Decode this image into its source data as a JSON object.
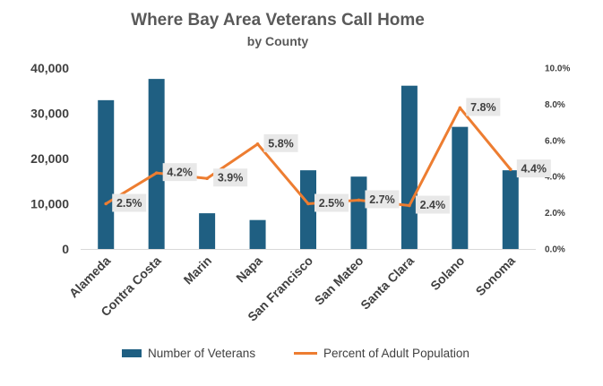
{
  "chart_data": {
    "type": "bar+line",
    "title": "Where Bay Area Veterans Call Home",
    "subtitle": "by County",
    "categories": [
      "Alameda",
      "Contra Costa",
      "Marin",
      "Napa",
      "San Francisco",
      "San Mateo",
      "Santa Clara",
      "Solano",
      "Sonoma"
    ],
    "series": [
      {
        "name": "Number of Veterans",
        "type": "bar",
        "axis": "left",
        "color": "#1f5f82",
        "values": [
          32900,
          37600,
          7900,
          6400,
          17400,
          16000,
          36100,
          27000,
          17400
        ]
      },
      {
        "name": "Percent of Adult Population",
        "type": "line",
        "axis": "right",
        "color": "#ed7d31",
        "values": [
          2.5,
          4.2,
          3.9,
          5.8,
          2.5,
          2.7,
          2.4,
          7.8,
          4.4
        ],
        "data_labels": [
          "2.5%",
          "4.2%",
          "3.9%",
          "5.8%",
          "2.5%",
          "2.7%",
          "2.4%",
          "7.8%",
          "4.4%"
        ]
      }
    ],
    "y_left": {
      "ylim": [
        0,
        40000
      ],
      "ticks": [
        0,
        10000,
        20000,
        30000,
        40000
      ],
      "tick_labels": [
        "0",
        "10,000",
        "20,000",
        "30,000",
        "40,000"
      ]
    },
    "y_right": {
      "ylim": [
        0,
        10
      ],
      "ticks": [
        0,
        2,
        4,
        6,
        8,
        10
      ],
      "tick_labels": [
        "0.0%",
        "2.0%",
        "4.0%",
        "6.0%",
        "8.0%",
        "10.0%"
      ]
    },
    "grid": false,
    "legend_position": "bottom"
  }
}
